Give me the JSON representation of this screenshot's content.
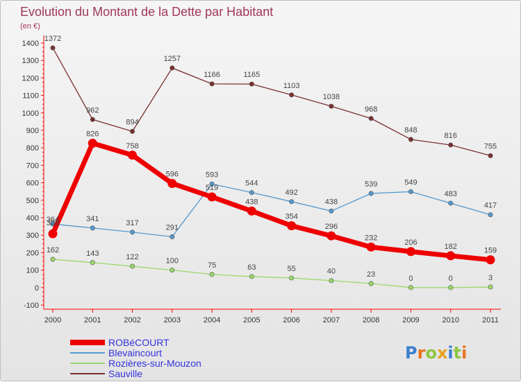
{
  "chart_data": {
    "type": "line",
    "title": "Evolution du Montant de la Dette par Habitant",
    "subtitle": "(en €)",
    "categories": [
      "2000",
      "2001",
      "2002",
      "2003",
      "2004",
      "2005",
      "2006",
      "2007",
      "2008",
      "2009",
      "2010",
      "2011"
    ],
    "ylim": [
      -100,
      1400
    ],
    "yticks": [
      -100,
      0,
      100,
      200,
      300,
      400,
      500,
      600,
      700,
      800,
      900,
      1000,
      1100,
      1200,
      1300,
      1400
    ],
    "grid": false,
    "legend_position": "bottom-left",
    "series": [
      {
        "name": "ROBéCOURT",
        "color": "#ee0000",
        "values": [
          308,
          826,
          758,
          596,
          519,
          438,
          354,
          296,
          232,
          206,
          182,
          159
        ],
        "labels": [
          "308",
          "826",
          "758",
          "596",
          "519",
          "438",
          "354",
          "296",
          "232",
          "206",
          "182",
          "159"
        ]
      },
      {
        "name": "Blevaincourt",
        "color": "#5598cc",
        "values": [
          364,
          341,
          317,
          291,
          593,
          544,
          492,
          438,
          539,
          549,
          483,
          417
        ],
        "labels": [
          "364",
          "341",
          "317",
          "291",
          "593",
          "544",
          "492",
          "438",
          "539",
          "549",
          "483",
          "417"
        ]
      },
      {
        "name": "Rozières-sur-Mouzon",
        "color": "#9ad86a",
        "values": [
          162,
          143,
          122,
          100,
          75,
          63,
          55,
          40,
          23,
          0,
          0,
          3
        ],
        "labels": [
          "162",
          "143",
          "122",
          "100",
          "75",
          "63",
          "55",
          "40",
          "23",
          "0",
          "0",
          "3"
        ]
      },
      {
        "name": "Sauville",
        "color": "#7a2f2f",
        "values": [
          1372,
          962,
          894,
          1257,
          1166,
          1165,
          1103,
          1038,
          968,
          848,
          816,
          755
        ],
        "labels": [
          "1372",
          "962",
          "894",
          "1257",
          "1166",
          "1165",
          "1103",
          "1038",
          "968",
          "848",
          "816",
          "755"
        ]
      }
    ]
  },
  "legend_colors": {
    "ROBéCOURT": "#3333dd",
    "Blevaincourt": "#3333dd",
    "Rozières-sur-Mouzon": "#3333dd",
    "Sauville": "#3333dd"
  },
  "logo": {
    "letters": [
      "P",
      "r",
      "o",
      "x",
      "i",
      "t",
      "i"
    ],
    "colors": [
      "#3a7ecf",
      "#e8731e",
      "#8cc63f",
      "#e8a01e",
      "#3a7ecf",
      "#8cc63f",
      "#e8731e"
    ]
  }
}
